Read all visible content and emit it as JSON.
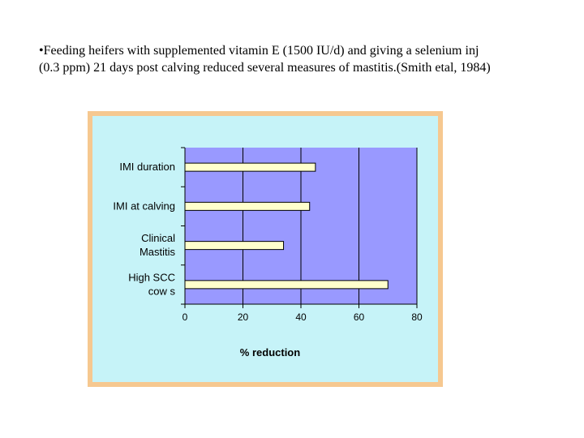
{
  "slide": {
    "caption": "•Feeding heifers with supplemented vitamin E (1500 IU/d) and giving a selenium inj (0.3 ppm) 21 days post calving reduced several measures of mastitis.(Smith etal, 1984)"
  },
  "colors": {
    "frame": "#f6c890",
    "chart_background": "#c6f3f8",
    "plot_area": "#9999ff",
    "bar_fill": "#ffffcc",
    "bar_stroke": "#000000"
  },
  "chart_data": {
    "type": "bar",
    "orientation": "horizontal",
    "categories": [
      [
        "IMI duration"
      ],
      [
        "IMI at calving"
      ],
      [
        "Clinical",
        "Mastitis"
      ],
      [
        "High SCC",
        "cow s"
      ]
    ],
    "values": [
      45,
      43,
      34,
      70
    ],
    "xlabel": "% reduction",
    "xlim": [
      0,
      80
    ],
    "xticks": [
      "0",
      "20",
      "40",
      "60",
      "80"
    ],
    "grid": "vertical",
    "legend": "none"
  }
}
